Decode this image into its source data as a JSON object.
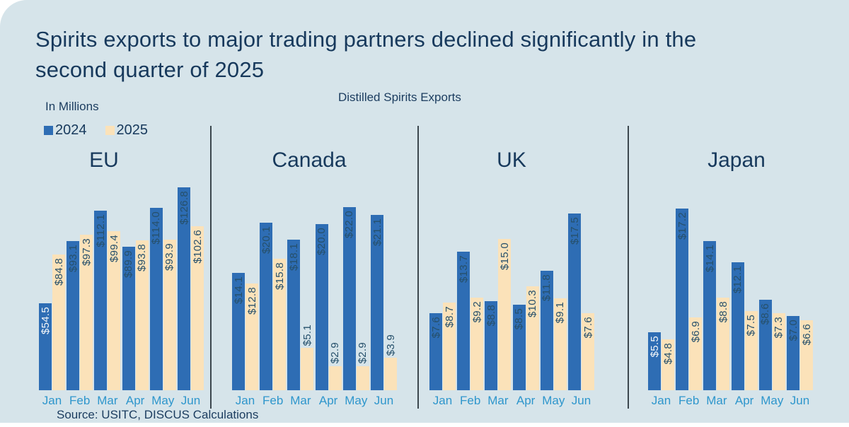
{
  "title": {
    "lines": [
      "Spirits exports to major trading partners declined significantly in the",
      "second quarter of 2025"
    ]
  },
  "units_label": "In Millions",
  "chart_subtitle": "Distilled Spirits Exports",
  "source": "Source: USITC, DISCUS Calculations",
  "legend": [
    {
      "label": "2024",
      "color": "#2e6db4"
    },
    {
      "label": "2025",
      "color": "#fbe2b9"
    }
  ],
  "colors": {
    "series_2024": "#2e6db4",
    "series_2025": "#fbe2b9",
    "card_background": "#d6e4ea",
    "page_background": "#ffffff",
    "title_text": "#17395c",
    "value_label": "#26506b",
    "value_label_light": "#f4f7f9",
    "month_label": "#2e96cc",
    "divider": "#3c474e"
  },
  "chart_data": {
    "type": "bar",
    "title": "Distilled Spirits Exports",
    "units": "In Millions",
    "value_prefix": "$",
    "value_decimals": 1,
    "categories": [
      "Jan",
      "Feb",
      "Mar",
      "Apr",
      "May",
      "Jun"
    ],
    "series_names": [
      "2024",
      "2025"
    ],
    "legend_position": "top-left",
    "grid": false,
    "panels": [
      {
        "title": "EU",
        "series": [
          {
            "name": "2024",
            "values": [
              54.5,
              93.1,
              112.1,
              89.9,
              114.0,
              126.8
            ],
            "white_label_indices": [
              0
            ]
          },
          {
            "name": "2025",
            "values": [
              84.8,
              97.3,
              99.4,
              93.8,
              93.9,
              102.6
            ],
            "white_label_indices": []
          }
        ]
      },
      {
        "title": "Canada",
        "series": [
          {
            "name": "2024",
            "values": [
              14.1,
              20.1,
              18.1,
              20.0,
              22.0,
              21.1
            ],
            "white_label_indices": []
          },
          {
            "name": "2025",
            "values": [
              12.8,
              15.8,
              5.1,
              2.9,
              2.9,
              3.9
            ],
            "white_label_indices": []
          }
        ]
      },
      {
        "title": "UK",
        "series": [
          {
            "name": "2024",
            "values": [
              7.6,
              13.7,
              8.8,
              8.5,
              11.8,
              17.5
            ],
            "white_label_indices": []
          },
          {
            "name": "2025",
            "values": [
              8.7,
              9.2,
              15.0,
              10.3,
              9.1,
              7.6
            ],
            "white_label_indices": []
          }
        ]
      },
      {
        "title": "Japan",
        "series": [
          {
            "name": "2024",
            "values": [
              5.5,
              17.2,
              14.1,
              12.1,
              8.6,
              7.0
            ],
            "white_label_indices": [
              0
            ]
          },
          {
            "name": "2025",
            "values": [
              4.8,
              6.9,
              8.8,
              7.5,
              7.3,
              6.6
            ],
            "white_label_indices": []
          }
        ]
      }
    ]
  }
}
